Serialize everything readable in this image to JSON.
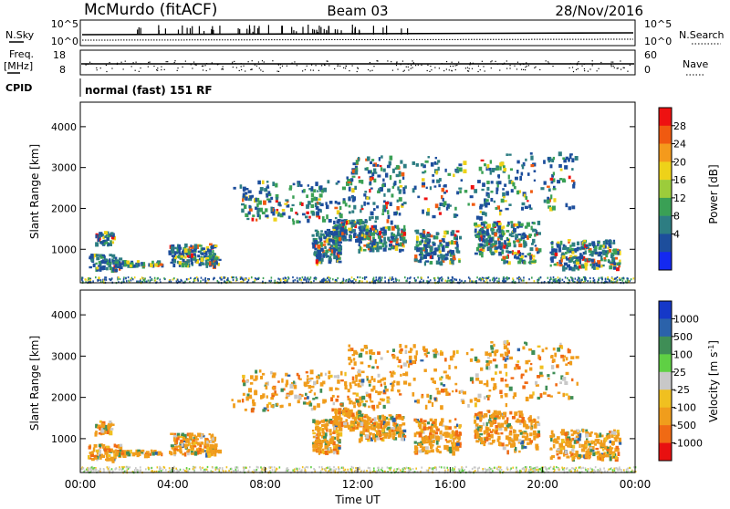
{
  "header": {
    "title": "McMurdo (fitACF)",
    "beam": "Beam 03",
    "date": "28/Nov/2016"
  },
  "top_panels": {
    "nsky_label": "N.Sky",
    "nsearch_label": "N.Search",
    "freq_label": "Freq.",
    "freq_unit": "[MHz]",
    "nave_label": "Nave",
    "cpid_label": "CPID",
    "cpid_value": "normal (fast) 151 RF",
    "noise_ticks": [
      "10^5",
      "10^0"
    ],
    "freq_ticks": [
      "18",
      "8"
    ],
    "nave_ticks": [
      "60",
      "0"
    ]
  },
  "chart_data": [
    {
      "type": "heatmap",
      "name": "power",
      "ylabel": "Slant Range [km]",
      "xlabel": "",
      "ylim": [
        180,
        4600
      ],
      "y_ticks": [
        1000,
        2000,
        3000,
        4000
      ],
      "colorbar_label": "Power [dB]",
      "colorbar_ticks": [
        "28",
        "24",
        "20",
        "16",
        "12",
        "8",
        "4"
      ],
      "colorbar_colors": [
        "#ee1111",
        "#f05a10",
        "#f49a1c",
        "#eed219",
        "#9ccc3b",
        "#3aa055",
        "#2d7d82",
        "#1d4e9c",
        "#1429f0"
      ]
    },
    {
      "type": "heatmap",
      "name": "velocity",
      "ylabel": "Slant Range [km]",
      "xlabel": "Time UT",
      "ylim": [
        180,
        4600
      ],
      "y_ticks": [
        1000,
        2000,
        3000,
        4000
      ],
      "x_ticks": [
        "00:00",
        "04:00",
        "08:00",
        "12:00",
        "16:00",
        "20:00",
        "00:00"
      ],
      "colorbar_label": "Velocity [m s",
      "colorbar_unit_exp": "-1",
      "colorbar_unit_close": "]",
      "colorbar_ticks": [
        "1000",
        "500",
        "100",
        "25",
        "-25",
        "-100",
        "-500",
        "-1000"
      ],
      "colorbar_colors": [
        "#1538c8",
        "#2b62aa",
        "#3f8e56",
        "#5fd044",
        "#c8c8c8",
        "#f0c020",
        "#f09d1c",
        "#f06a14",
        "#e81010"
      ]
    }
  ]
}
